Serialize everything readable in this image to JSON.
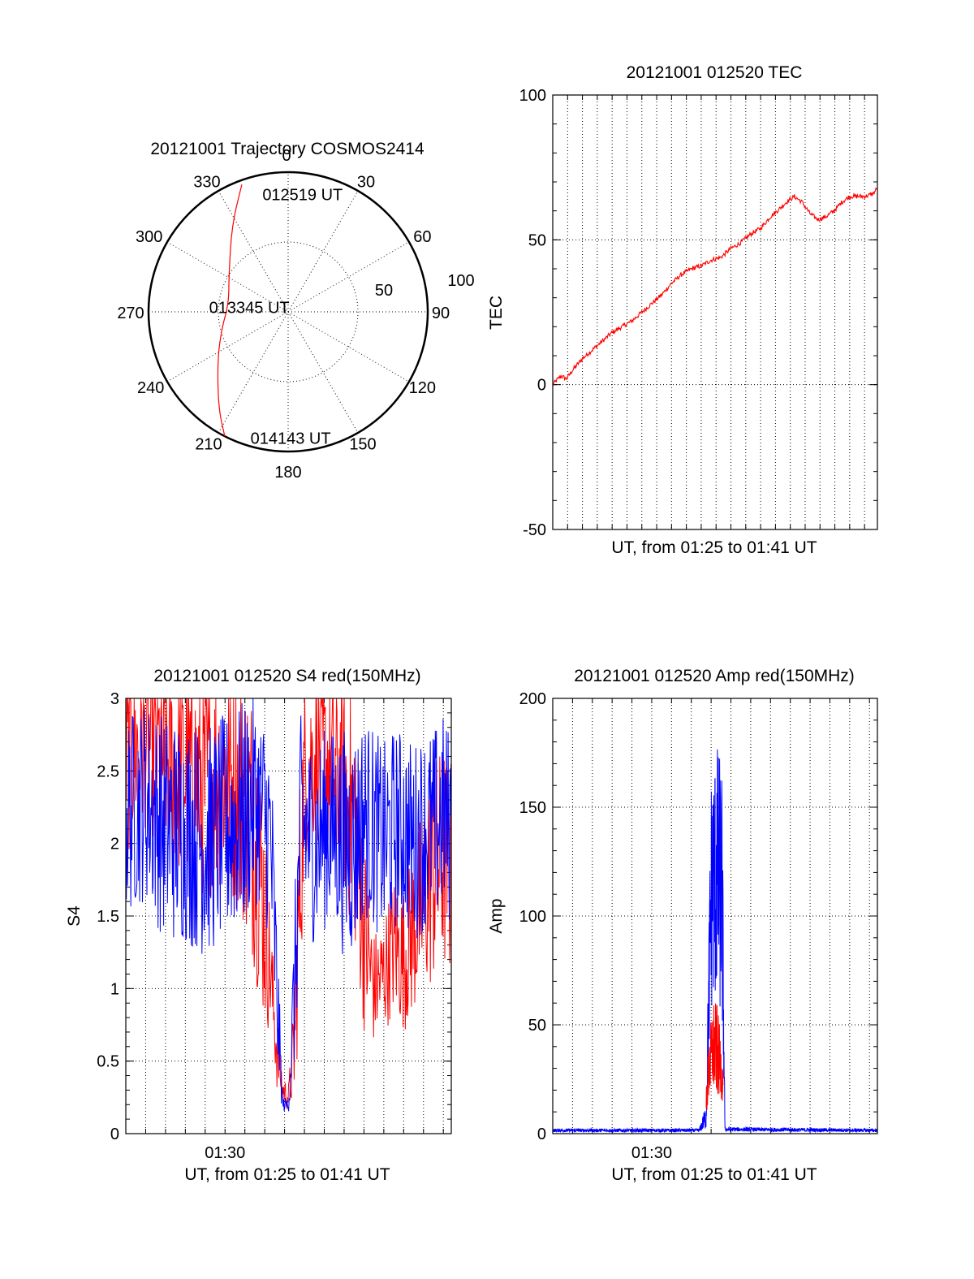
{
  "colors": {
    "red": "#ff0000",
    "blue": "#0000ff",
    "axis": "#000000"
  },
  "chart_data": [
    {
      "id": "trajectory",
      "type": "polar",
      "title": "20121001 Trajectory COSMOS2414",
      "angle_labels": [
        "0",
        "30",
        "60",
        "90",
        "120",
        "150",
        "180",
        "210",
        "240",
        "270",
        "300",
        "330"
      ],
      "radius_labels": [
        "50",
        "100"
      ],
      "rlim": [
        0,
        100
      ],
      "angular_grid_step_deg": 30,
      "radial_grid": [
        50
      ],
      "series": [
        {
          "color": "red",
          "points": [
            [
              340,
              97
            ],
            [
              327,
              74
            ],
            [
              302,
              50
            ],
            [
              278,
              43
            ],
            [
              256,
              49
            ],
            [
              236,
              61
            ],
            [
              216,
              85
            ],
            [
              207,
              100
            ]
          ]
        }
      ],
      "annotations": [
        {
          "text": "012519 UT",
          "az": 350,
          "r": 86
        },
        {
          "text": "013345 UT",
          "az": 280,
          "r": 12
        },
        {
          "text": "014143 UT",
          "az": 195,
          "r": 93
        }
      ]
    },
    {
      "id": "tec",
      "type": "line",
      "title": "20121001 012520 TEC",
      "xlabel": "UT, from 01:25 to 01:41 UT",
      "ylabel": "TEC",
      "xlim_minutes": [
        0,
        16.4
      ],
      "ylim": [
        -50,
        100
      ],
      "yticks": [
        -50,
        0,
        50,
        100
      ],
      "ytick_labels": [
        "-50",
        "0",
        "50",
        "100"
      ],
      "xgrid_step_minutes": 0.75,
      "grid": true,
      "series": [
        {
          "color": "red",
          "x_minutes": [
            0,
            0.4,
            0.7,
            1.0,
            1.5,
            2.0,
            2.5,
            3.0,
            3.5,
            4.0,
            4.5,
            5.0,
            5.5,
            6.0,
            6.5,
            7.0,
            7.5,
            8.0,
            8.5,
            9.0,
            9.5,
            10.0,
            10.5,
            11.0,
            11.5,
            11.8,
            12.2,
            12.6,
            13.0,
            13.4,
            13.8,
            14.2,
            14.6,
            15.0,
            15.4,
            15.8,
            16.2,
            16.4
          ],
          "values": [
            0,
            3,
            2,
            5,
            9,
            12,
            15,
            18,
            20,
            22,
            25,
            28,
            31,
            35,
            38,
            40,
            41,
            43,
            44,
            47,
            49,
            52,
            54,
            58,
            61,
            63,
            65,
            63,
            59,
            57,
            58,
            60,
            63,
            65,
            65,
            65,
            66,
            68
          ]
        }
      ]
    },
    {
      "id": "s4",
      "type": "line",
      "title": "20121001 012520 S4 red(150MHz)",
      "xlabel": "UT, from 01:25 to 01:41 UT",
      "ylabel": "S4",
      "xlim_minutes": [
        0,
        16.4
      ],
      "ylim": [
        0,
        3
      ],
      "yticks": [
        0,
        0.5,
        1,
        1.5,
        2,
        2.5,
        3
      ],
      "ytick_labels": [
        "0",
        "0.5",
        "1",
        "1.5",
        "2",
        "2.5",
        "3"
      ],
      "xtick_labels": [
        {
          "minute": 5,
          "label": "01:30"
        }
      ],
      "xgrid_step_minutes": 1,
      "grid": true,
      "series": [
        {
          "color": "red",
          "x_minutes": [
            0,
            1,
            2,
            3,
            4,
            5,
            6,
            6.5,
            7,
            7.3,
            7.6,
            7.9,
            8.2,
            8.5,
            8.8,
            9,
            9.5,
            10,
            10.5,
            11,
            11.5,
            12,
            12.5,
            13,
            13.5,
            14,
            14.5,
            15,
            15.5,
            16,
            16.4
          ],
          "mean": [
            2.6,
            2.7,
            2.6,
            2.5,
            2.4,
            2.5,
            2.3,
            2.1,
            1.5,
            1.1,
            0.6,
            0.3,
            0.25,
            0.6,
            1.8,
            2.5,
            2.6,
            2.6,
            2.5,
            2.4,
            2.2,
            1.4,
            1.0,
            1.1,
            1.3,
            1.2,
            1.4,
            1.6,
            1.8,
            1.9,
            1.8
          ],
          "spread": [
            0.7,
            0.6,
            0.7,
            0.8,
            0.8,
            0.8,
            0.9,
            1.0,
            0.8,
            0.4,
            0.3,
            0.1,
            0.1,
            0.4,
            0.9,
            0.6,
            0.6,
            0.6,
            0.7,
            0.8,
            0.9,
            0.7,
            0.4,
            0.4,
            0.5,
            0.5,
            0.6,
            0.7,
            0.8,
            0.8,
            0.8
          ]
        },
        {
          "color": "blue",
          "x_minutes": [
            0,
            1,
            2,
            3,
            4,
            5,
            6,
            6.5,
            7,
            7.3,
            7.6,
            7.9,
            8.2,
            8.5,
            8.8,
            9,
            9.5,
            10,
            10.5,
            11,
            11.5,
            12,
            12.5,
            13,
            13.5,
            14,
            14.5,
            15,
            15.5,
            16,
            16.4
          ],
          "mean": [
            2.2,
            2.3,
            2.1,
            2.1,
            2.0,
            2.1,
            2.2,
            2.3,
            2.2,
            2.0,
            1.0,
            0.2,
            0.2,
            1.0,
            2.1,
            2.1,
            2.0,
            2.1,
            2.1,
            2.0,
            2.0,
            2.2,
            2.1,
            2.0,
            2.1,
            2.1,
            2.0,
            2.1,
            2.1,
            2.2,
            2.1
          ],
          "spread": [
            0.7,
            0.7,
            0.8,
            0.8,
            0.8,
            0.8,
            0.8,
            0.7,
            0.7,
            0.8,
            0.6,
            0.05,
            0.05,
            0.6,
            0.8,
            0.7,
            0.7,
            0.7,
            0.7,
            0.8,
            0.8,
            0.7,
            0.7,
            0.7,
            0.7,
            0.7,
            0.7,
            0.7,
            0.7,
            0.7,
            0.7
          ]
        }
      ]
    },
    {
      "id": "amp",
      "type": "line",
      "title": "20121001 012520 Amp red(150MHz)",
      "xlabel": "UT, from 01:25 to 01:41 UT",
      "ylabel": "Amp",
      "xlim_minutes": [
        0,
        16.4
      ],
      "ylim": [
        0,
        200
      ],
      "yticks": [
        0,
        50,
        100,
        150,
        200
      ],
      "ytick_labels": [
        "0",
        "50",
        "100",
        "150",
        "200"
      ],
      "xtick_labels": [
        {
          "minute": 5,
          "label": "01:30"
        }
      ],
      "xgrid_step_minutes": 1,
      "grid": true,
      "series": [
        {
          "color": "blue",
          "x_minutes": [
            0,
            7.4,
            7.75,
            8.0,
            8.3,
            8.55,
            8.7,
            16.4
          ],
          "mean": [
            1.5,
            1.5,
            8,
            110,
            120,
            110,
            2,
            1.5
          ],
          "spread": [
            0.8,
            0.8,
            6,
            55,
            60,
            60,
            1,
            0.8
          ]
        },
        {
          "color": "red",
          "x_minutes": [
            7.75,
            7.9,
            8.1,
            8.3,
            8.5,
            8.6
          ],
          "mean": [
            15,
            30,
            40,
            38,
            30,
            22
          ],
          "spread": [
            8,
            15,
            22,
            22,
            14,
            8
          ]
        }
      ]
    }
  ]
}
